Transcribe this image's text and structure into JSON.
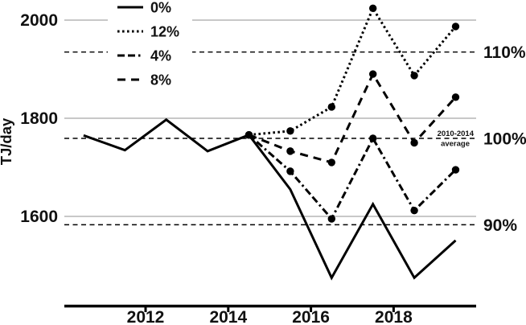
{
  "chart_data": {
    "type": "line",
    "title": "",
    "xlabel": "",
    "ylabel": "TJ/day",
    "y_ticks": [
      2000,
      1800,
      1600
    ],
    "x_ticks": [
      2012,
      2014,
      2016,
      2018
    ],
    "ylim": [
      1420,
      2040
    ],
    "xlim": [
      2010,
      2020
    ],
    "grid": "horizontal gray solid lines at y ticks",
    "legend_position": "top-left inside plot, white patch, no border",
    "legend": [
      {
        "label": "0%",
        "style": "solid"
      },
      {
        "label": "12%",
        "style": "dotted"
      },
      {
        "label": "4%",
        "style": "dashdot"
      },
      {
        "label": "8%",
        "style": "dashed"
      }
    ],
    "right_axis_labels": [
      {
        "label": "110%",
        "value": 1935
      },
      {
        "label": "100%",
        "value": 1759
      },
      {
        "label": "90%",
        "value": 1583
      }
    ],
    "reference_lines": {
      "style": "black thin dashed",
      "values": [
        1935,
        1759,
        1583
      ],
      "meaning": "percent of 2010-2014 average (average = ~1759 TJ/day)"
    },
    "annotation": {
      "line1": "2010-2014",
      "line2": "average",
      "attached_to_value": 1759
    },
    "series": [
      {
        "name": "0%",
        "style": "solid",
        "markers": false,
        "x": [
          2010.5,
          2011.5,
          2012.5,
          2013.5,
          2014.5,
          2015.5,
          2016.5,
          2017.5,
          2018.5,
          2019.5
        ],
        "values": [
          1765,
          1735,
          1797,
          1733,
          1766,
          1655,
          1475,
          1625,
          1475,
          1551
        ]
      },
      {
        "name": "12%",
        "style": "dotted",
        "markers": true,
        "x": [
          2014.5,
          2015.5,
          2016.5,
          2017.5,
          2018.5,
          2019.5
        ],
        "values": [
          1766,
          1774,
          1823,
          2024,
          1887,
          1987
        ]
      },
      {
        "name": "8%",
        "style": "dashed",
        "markers": true,
        "x": [
          2014.5,
          2015.5,
          2016.5,
          2017.5,
          2018.5,
          2019.5
        ],
        "values": [
          1766,
          1733,
          1710,
          1890,
          1750,
          1843
        ]
      },
      {
        "name": "4%",
        "style": "dashdot",
        "markers": true,
        "x": [
          2014.5,
          2015.5,
          2016.5,
          2017.5,
          2018.5,
          2019.5
        ],
        "values": [
          1766,
          1692,
          1595,
          1759,
          1612,
          1695
        ]
      }
    ],
    "colors": {
      "line": "#000000",
      "grid": "#a8a8a8",
      "background": "#ffffff",
      "text": "#111111"
    }
  }
}
